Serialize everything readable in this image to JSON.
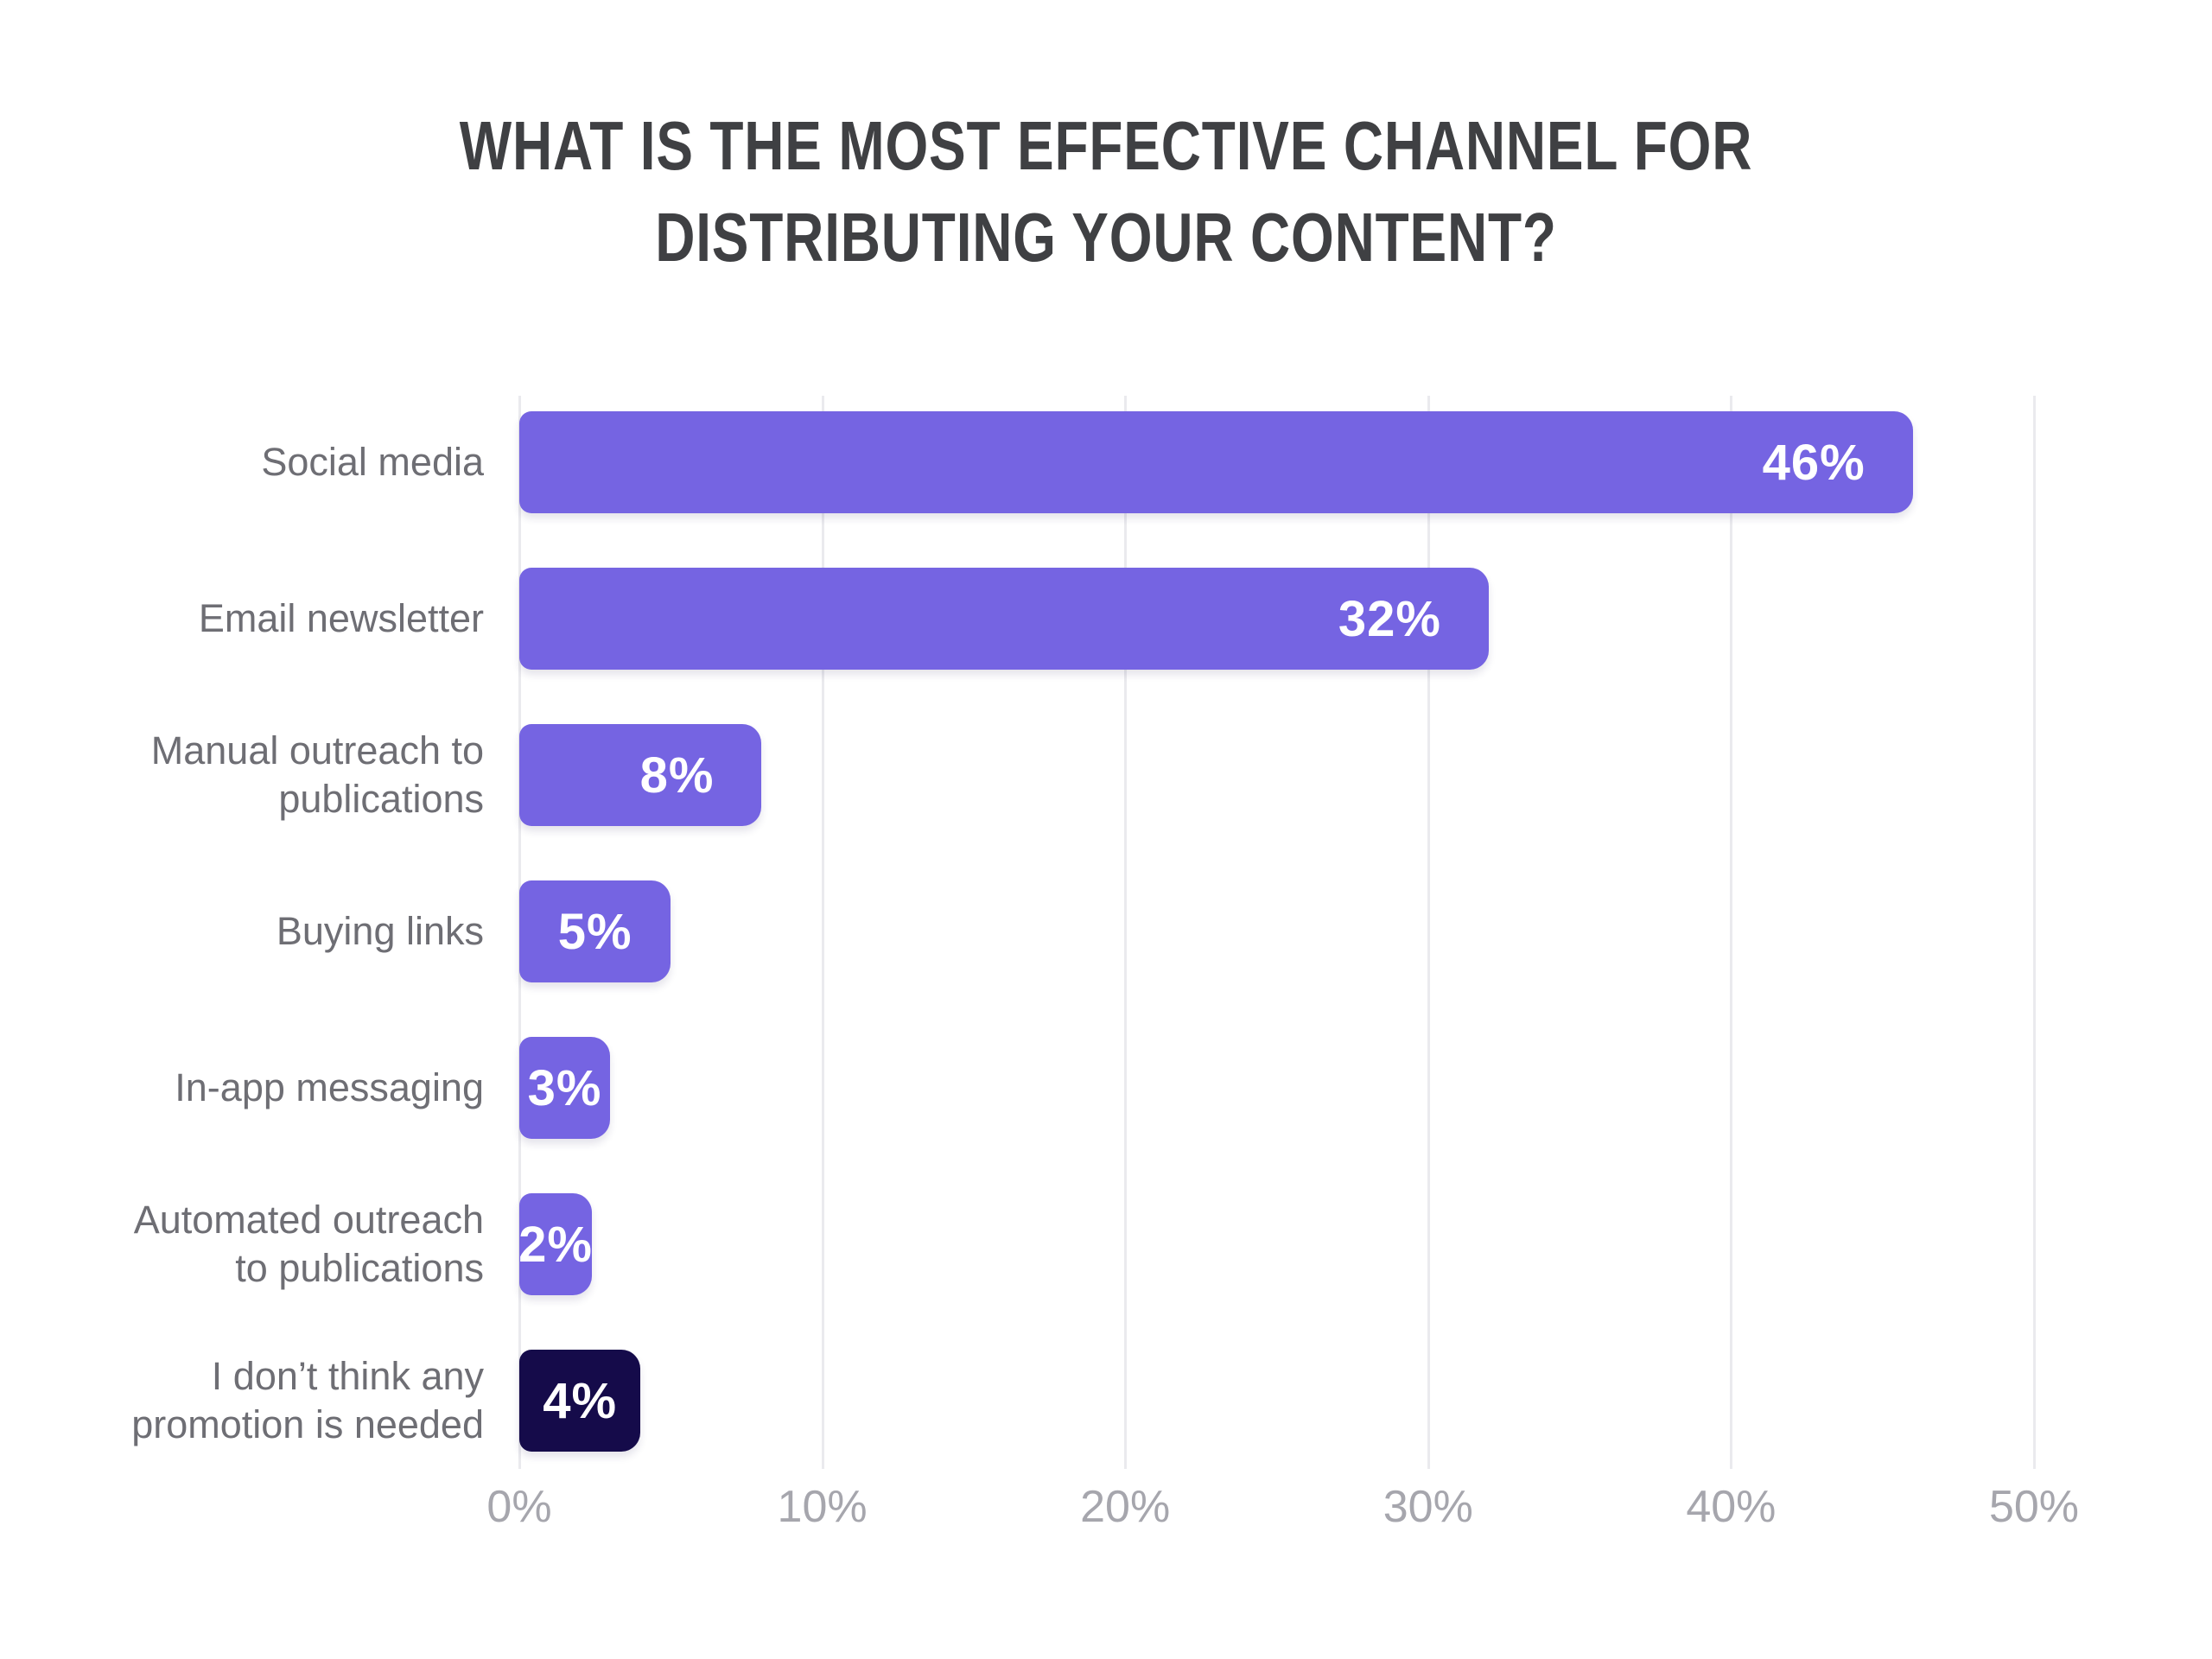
{
  "title": {
    "line1": "WHAT IS THE MOST EFFECTIVE CHANNEL FOR",
    "line2": "DISTRIBUTING YOUR CONTENT?"
  },
  "chart_data": {
    "type": "bar",
    "orientation": "horizontal",
    "title": "WHAT IS THE MOST EFFECTIVE CHANNEL FOR DISTRIBUTING YOUR CONTENT?",
    "categories": [
      "Social media",
      "Email newsletter",
      "Manual outreach to publications",
      "Buying links",
      "In-app messaging",
      "Automated outreach to publications",
      "I don’t think any promotion is needed"
    ],
    "label_lines": [
      [
        "Social media"
      ],
      [
        "Email newsletter"
      ],
      [
        "Manual outreach to",
        "publications"
      ],
      [
        "Buying links"
      ],
      [
        "In-app messaging"
      ],
      [
        "Automated outreach",
        "to publications"
      ],
      [
        "I don’t think any",
        "promotion is needed"
      ]
    ],
    "values": [
      46,
      32,
      8,
      5,
      3,
      2,
      4
    ],
    "value_labels": [
      "46%",
      "32%",
      "8%",
      "5%",
      "3%",
      "2%",
      "4%"
    ],
    "bar_colors": [
      "#7564e2",
      "#7564e2",
      "#7564e2",
      "#7564e2",
      "#7564e2",
      "#7564e2",
      "#150b4a"
    ],
    "x_ticks": [
      "0%",
      "10%",
      "20%",
      "30%",
      "40%",
      "50%"
    ],
    "x_tick_values": [
      0,
      10,
      20,
      30,
      40,
      50
    ],
    "xlim": [
      0,
      50
    ],
    "grid": "vertical",
    "legend": "none",
    "xlabel": "",
    "ylabel": "",
    "colors": {
      "bar_purple": "#7564e2",
      "bar_navy": "#150b4a",
      "title_text": "#3f4043",
      "category_text": "#6e6e74",
      "axis_text": "#a6a6ad",
      "gridline": "#eaeaee",
      "value_text": "#ffffff",
      "background": "#ffffff"
    }
  }
}
